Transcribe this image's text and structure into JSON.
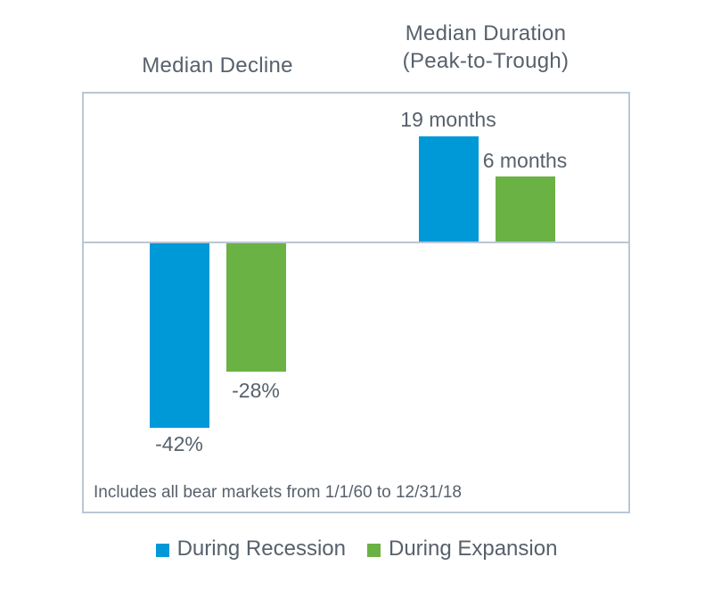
{
  "chart_data": {
    "type": "bar",
    "grid": false,
    "baseline": 0,
    "groups": [
      {
        "title": "Median Decline",
        "unit": "percent",
        "categories": [
          "During Recession",
          "During Expansion"
        ],
        "values": [
          -42,
          -28
        ],
        "labels": [
          "-42%",
          "-28%"
        ]
      },
      {
        "title": "Median Duration (Peak-to-Trough)",
        "title_lines": [
          "Median Duration",
          "(Peak-to-Trough)"
        ],
        "unit": "months",
        "categories": [
          "During Recession",
          "During Expansion"
        ],
        "values": [
          19,
          6
        ],
        "labels": [
          "19 months",
          "6 months"
        ]
      }
    ],
    "legend": [
      {
        "label": "During Recession",
        "color": "#0099d8"
      },
      {
        "label": "During Expansion",
        "color": "#6bb245"
      }
    ],
    "footnote": "Includes all bear markets from 1/1/60 to 12/31/18",
    "colors": {
      "recession_blue": "#0099d8",
      "expansion_green": "#6bb245",
      "text": "#57616c",
      "frame": "#b9c7d4",
      "background": "#ffffff"
    },
    "legend_position": "bottom-center"
  }
}
